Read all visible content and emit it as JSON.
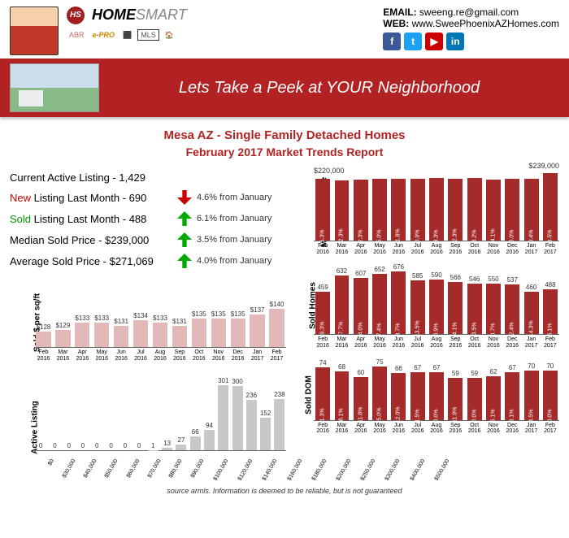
{
  "header": {
    "logo_home": "HOME",
    "logo_smart": "SMART",
    "badge": "HS",
    "certs": [
      "ABR",
      "e-PRO",
      "⬛",
      "MLS",
      "🏠"
    ],
    "email_label": "EMAIL:",
    "email": "sweeng.re@gmail.com",
    "web_label": "WEB:",
    "web": "www.SweePhoenixAZHomes.com",
    "social": {
      "fb": "f",
      "tw": "t",
      "yt": "▶",
      "in": "in"
    }
  },
  "banner": {
    "title": "Lets Take a Peek at YOUR Neighborhood"
  },
  "title": "Mesa AZ - Single Family Detached Homes",
  "subtitle": "February 2017 Market Trends Report",
  "stats": [
    {
      "label_pre": "Current Active Listing - ",
      "label_color": "",
      "value": "1,429",
      "arrow": "",
      "delta": ""
    },
    {
      "label_pre": "New",
      "label_color": "red",
      "label_post": " Listing Last Month - ",
      "value": "690",
      "arrow": "down",
      "delta": "4.6% from January"
    },
    {
      "label_pre": "Sold",
      "label_color": "green",
      "label_post": " Listing Last Month - ",
      "value": "488",
      "arrow": "up",
      "delta": "6.1% from January"
    },
    {
      "label_pre": "Median Sold Price - ",
      "label_color": "",
      "value": "$239,000",
      "arrow": "up",
      "delta": "3.5% from January"
    },
    {
      "label_pre": "Average Sold Price - ",
      "label_color": "",
      "value": "$271,069",
      "arrow": "up",
      "delta": "4.0% from January"
    }
  ],
  "colors": {
    "bar_maroon": "#a52a2a",
    "bar_grey": "#c8c8c8",
    "pink": "#e2b8b8"
  },
  "months": [
    "Feb 2016",
    "Mar 2016",
    "Apr 2016",
    "May 2016",
    "Jun 2016",
    "Jul 2016",
    "Aug 2016",
    "Sep 2016",
    "Oct 2016",
    "Nov 2016",
    "Dec 2016",
    "Jan 2017",
    "Feb 2017"
  ],
  "sqft_chart": {
    "ylabel": "Sold $ per sq/ft",
    "values": [
      128,
      129,
      133,
      133,
      131,
      134,
      133,
      131,
      135,
      135,
      135,
      137,
      140
    ],
    "labels": [
      "$128",
      "$129",
      "$133",
      "$133",
      "$131",
      "$134",
      "$133",
      "$131",
      "$135",
      "$135",
      "$135",
      "$137",
      "$140"
    ],
    "max": 150
  },
  "active_chart": {
    "ylabel": "Active Listing",
    "x_labels": [
      "$0",
      "$30,000",
      "$40,000",
      "$50,000",
      "$60,000",
      "$70,000",
      "$80,000",
      "$90,000",
      "$100,000",
      "$120,000",
      "$140,000",
      "$160,000",
      "$180,000",
      "$200,000",
      "$250,000",
      "$300,000",
      "$400,000",
      "$500,000"
    ],
    "values": [
      0,
      0,
      0,
      0,
      0,
      0,
      0,
      0,
      1,
      13,
      27,
      66,
      94,
      301,
      300,
      236,
      152,
      238
    ],
    "max": 320
  },
  "median_chart": {
    "ylabel": "Median Sold Price",
    "annot_left": "$220,000",
    "annot_right": "$239,000",
    "heights": [
      84,
      82,
      83,
      85,
      84,
      85,
      86,
      84,
      86,
      83,
      85,
      85,
      92
    ],
    "pcts": [
      "5.3%",
      "-2.3%",
      "2.3%",
      "5.0%",
      "-1.8%",
      "0.9%",
      "3.3%",
      "-2.3%",
      "3.2%",
      "-4.1%",
      "0.0%",
      "0.4%",
      "3.5%"
    ]
  },
  "sold_homes_chart": {
    "ylabel": "Sold Homes",
    "values": [
      459,
      632,
      607,
      652,
      676,
      585,
      590,
      566,
      546,
      550,
      537,
      460,
      488
    ],
    "pcts": [
      "29.3%",
      "37.7%",
      "-4.0%",
      "7.4%",
      "3.7%",
      "-13.5%",
      "0.9%",
      "-4.1%",
      "-3.5%",
      "0.7%",
      "-2.4%",
      "-14.3%",
      "6.1%"
    ],
    "max": 700
  },
  "dom_chart": {
    "ylabel": "Sold DOM",
    "values": [
      74,
      68,
      60,
      75,
      66,
      67,
      67,
      59,
      59,
      62,
      67,
      70,
      70
    ],
    "pcts": [
      "-1.3%",
      "-8.1%",
      "-11.8%",
      "25.0%",
      "-12.0%",
      "1.5%",
      "0.0%",
      "-11.9%",
      "0.0%",
      "5.1%",
      "8.1%",
      "4.5%",
      "0.0%"
    ],
    "max": 80
  },
  "footer": "source armls. Information is deemed to be reliable, but is not guaranteed"
}
